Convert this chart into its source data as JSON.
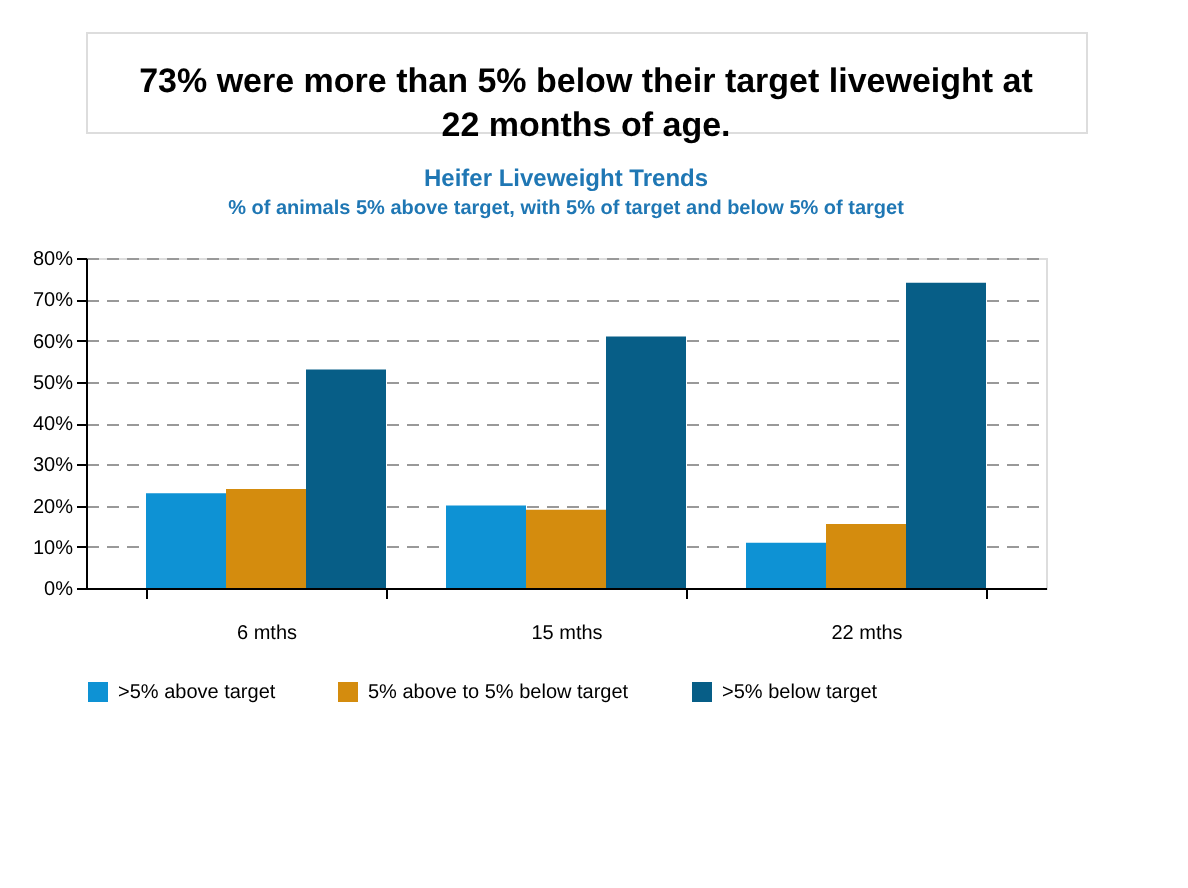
{
  "chart_data": {
    "type": "bar",
    "title": "Heifer Liveweight Trends",
    "subtitle": "% of animals 5% above target, with 5% of target and below 5% of target",
    "annotations": [
      "73% were more than 5% below their target liveweight at 22 months of age."
    ],
    "categories": [
      "6 mths",
      "15 mths",
      "22 mths"
    ],
    "series": [
      {
        "name": ">5% above target",
        "color": "#0e92d4",
        "values": [
          23,
          20,
          11
        ]
      },
      {
        "name": "5% above to 5% below target",
        "color": "#d48c0e",
        "values": [
          24,
          19,
          15.5
        ]
      },
      {
        "name": ">5% below target",
        "color": "#075e87",
        "values": [
          53,
          61,
          74
        ]
      }
    ],
    "ylim": [
      0,
      80
    ],
    "yticks": [
      {
        "value": 0,
        "label": "0%"
      },
      {
        "value": 10,
        "label": "10%"
      },
      {
        "value": 20,
        "label": "20%"
      },
      {
        "value": 30,
        "label": "30%"
      },
      {
        "value": 40,
        "label": "40%"
      },
      {
        "value": 50,
        "label": "50%"
      },
      {
        "value": 60,
        "label": "60%"
      },
      {
        "value": 70,
        "label": "70%"
      },
      {
        "value": 80,
        "label": "80%"
      }
    ],
    "grid": "y",
    "legend": "bottom"
  }
}
